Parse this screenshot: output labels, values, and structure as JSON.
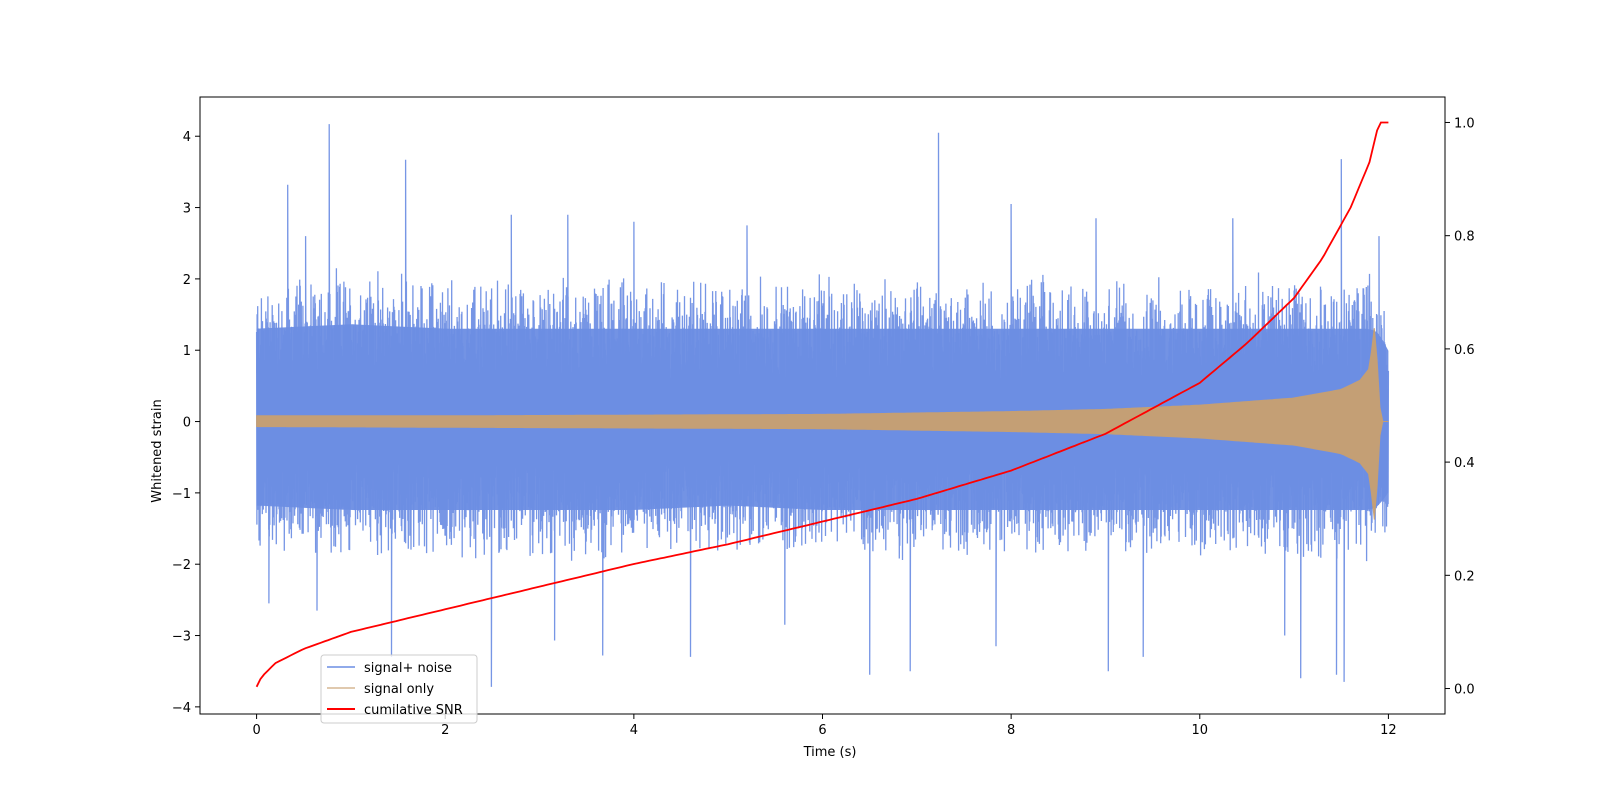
{
  "chart_data": {
    "type": "line",
    "title": "",
    "xlabel": "Time (s)",
    "ylabel": "Whitened strain",
    "y2label": "",
    "xlim": [
      -0.6,
      12.6
    ],
    "ylim": [
      -4.1,
      4.55
    ],
    "y2lim": [
      -0.045,
      1.045
    ],
    "x_ticks": [
      0,
      2,
      4,
      6,
      8,
      10,
      12
    ],
    "y_ticks": [
      -4,
      -3,
      -2,
      -1,
      0,
      1,
      2,
      3,
      4
    ],
    "y2_ticks": [
      0.0,
      0.2,
      0.4,
      0.6,
      0.8,
      1.0
    ],
    "x_tick_labels": [
      "0",
      "2",
      "4",
      "6",
      "8",
      "10",
      "12"
    ],
    "y_tick_labels": [
      "−4",
      "−3",
      "−2",
      "−1",
      "0",
      "1",
      "2",
      "3",
      "4"
    ],
    "y2_tick_labels": [
      "0.0",
      "0.2",
      "0.4",
      "0.6",
      "0.8",
      "1.0"
    ],
    "grid": false,
    "legend_position": "bottom-left",
    "series": [
      {
        "name": "signal+ noise",
        "color": "#6b8de3",
        "axis": "left",
        "envelope": {
          "x": [
            0,
            1,
            2,
            3,
            4,
            5,
            6,
            7,
            8,
            9,
            10,
            11,
            11.5,
            11.8,
            11.9,
            12.0
          ],
          "upper": [
            2.1,
            2.2,
            2.1,
            2.1,
            2.1,
            2.1,
            2.1,
            2.1,
            2.1,
            2.1,
            2.1,
            2.1,
            2.1,
            2.1,
            2.0,
            1.6
          ],
          "lower": [
            -1.9,
            -2.0,
            -2.0,
            -2.0,
            -2.0,
            -1.9,
            -2.0,
            -2.0,
            -2.0,
            -2.0,
            -2.0,
            -2.0,
            -2.0,
            -2.0,
            -1.9,
            -1.6
          ]
        },
        "peaks": [
          {
            "x": 0.77,
            "y": 4.17
          },
          {
            "x": 0.33,
            "y": 3.32
          },
          {
            "x": 1.58,
            "y": 3.67
          },
          {
            "x": 7.23,
            "y": 4.05
          },
          {
            "x": 11.5,
            "y": 3.68
          },
          {
            "x": 0.52,
            "y": 2.6
          },
          {
            "x": 2.7,
            "y": 2.9
          },
          {
            "x": 3.3,
            "y": 2.9
          },
          {
            "x": 4.0,
            "y": 2.8
          },
          {
            "x": 5.2,
            "y": 2.75
          },
          {
            "x": 8.0,
            "y": 3.05
          },
          {
            "x": 8.9,
            "y": 2.85
          },
          {
            "x": 10.35,
            "y": 2.85
          },
          {
            "x": 11.9,
            "y": 2.6
          },
          {
            "x": 0.64,
            "y": -2.65
          },
          {
            "x": 1.43,
            "y": -3.3
          },
          {
            "x": 2.49,
            "y": -3.72
          },
          {
            "x": 3.16,
            "y": -3.07
          },
          {
            "x": 3.67,
            "y": -3.28
          },
          {
            "x": 4.6,
            "y": -3.3
          },
          {
            "x": 6.5,
            "y": -3.55
          },
          {
            "x": 6.93,
            "y": -3.5
          },
          {
            "x": 7.84,
            "y": -3.15
          },
          {
            "x": 9.03,
            "y": -3.5
          },
          {
            "x": 9.4,
            "y": -3.3
          },
          {
            "x": 11.07,
            "y": -3.6
          },
          {
            "x": 11.45,
            "y": -3.55
          },
          {
            "x": 11.53,
            "y": -3.65
          },
          {
            "x": 0.13,
            "y": -2.55
          },
          {
            "x": 5.6,
            "y": -2.85
          },
          {
            "x": 10.9,
            "y": -3.0
          }
        ]
      },
      {
        "name": "signal only",
        "color": "#c9a070",
        "axis": "left",
        "envelope": {
          "x": [
            0,
            2,
            4,
            6,
            8,
            9,
            10,
            11,
            11.5,
            11.7,
            11.8,
            11.86,
            11.9,
            11.93,
            12.0
          ],
          "upper": [
            0.08,
            0.08,
            0.09,
            0.1,
            0.14,
            0.17,
            0.23,
            0.33,
            0.45,
            0.58,
            0.75,
            1.42,
            0.3,
            0.0,
            0.0
          ],
          "lower": [
            -0.07,
            -0.08,
            -0.09,
            -0.1,
            -0.14,
            -0.17,
            -0.23,
            -0.33,
            -0.45,
            -0.58,
            -0.75,
            -1.5,
            -0.3,
            0.0,
            0.0
          ]
        }
      },
      {
        "name": "cumilative SNR",
        "color": "#ff0000",
        "axis": "right",
        "x": [
          0,
          0.05,
          0.2,
          0.5,
          1,
          2,
          3,
          4,
          5,
          6,
          7,
          8,
          9,
          10,
          10.5,
          11,
          11.3,
          11.6,
          11.8,
          11.9,
          12.0
        ],
        "y": [
          0.003,
          0.02,
          0.045,
          0.07,
          0.1,
          0.14,
          0.18,
          0.22,
          0.255,
          0.295,
          0.335,
          0.385,
          0.45,
          0.54,
          0.61,
          0.69,
          0.76,
          0.85,
          0.93,
          1.0,
          1.0
        ]
      }
    ]
  }
}
